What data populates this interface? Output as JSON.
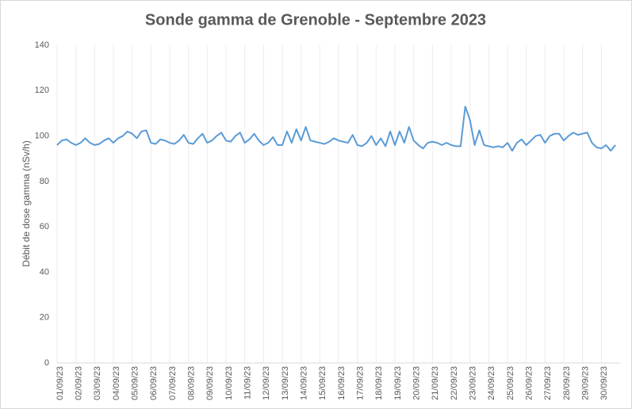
{
  "chart_data": {
    "type": "line",
    "title": "Sonde gamma de Grenoble - Septembre 2023",
    "y_label": "Débit de dose gamma (nSv/h)",
    "categories": [
      "01/09/23",
      null,
      null,
      null,
      "02/09/23",
      null,
      null,
      null,
      "03/09/23",
      null,
      null,
      null,
      "04/09/23",
      null,
      null,
      null,
      "05/09/23",
      null,
      null,
      null,
      "06/09/23",
      null,
      null,
      null,
      "07/09/23",
      null,
      null,
      null,
      "08/09/23",
      null,
      null,
      null,
      "09/09/23",
      null,
      null,
      null,
      "10/09/23",
      null,
      null,
      null,
      "11/09/23",
      null,
      null,
      null,
      "12/09/23",
      null,
      null,
      null,
      "13/09/23",
      null,
      null,
      null,
      "14/09/23",
      null,
      null,
      null,
      "15/09/23",
      null,
      null,
      null,
      "16/09/23",
      null,
      null,
      null,
      "17/09/23",
      null,
      null,
      null,
      "18/09/23",
      null,
      null,
      null,
      "19/09/23",
      null,
      null,
      null,
      "20/09/23",
      null,
      null,
      null,
      "21/09/23",
      null,
      null,
      null,
      "22/09/23",
      null,
      null,
      null,
      "23/09/23",
      null,
      null,
      null,
      "24/09/23",
      null,
      null,
      null,
      "25/09/23",
      null,
      null,
      null,
      "26/09/23",
      null,
      null,
      null,
      "27/09/23",
      null,
      null,
      null,
      "28/09/23",
      null,
      null,
      null,
      "29/09/23",
      null,
      null,
      null,
      "30/09/23",
      null,
      null,
      null
    ],
    "series": [
      {
        "name": "Débit de dose gamma",
        "color": "#5b9bd5",
        "values": [
          96,
          98,
          98.5,
          97,
          96,
          97,
          99,
          97,
          96,
          96.5,
          98,
          99,
          97,
          99,
          100,
          102,
          101,
          99,
          102,
          102.5,
          97,
          96.5,
          98.5,
          98,
          97,
          96.5,
          98,
          100.5,
          97,
          96.5,
          99,
          101,
          97,
          98,
          100,
          101.5,
          98,
          97.5,
          100,
          101.5,
          97,
          98.5,
          101,
          98,
          96,
          97,
          99.5,
          96,
          96,
          102,
          97,
          103,
          98,
          104,
          98,
          97.5,
          97,
          96.5,
          97.5,
          99,
          98,
          97.5,
          97,
          100.5,
          96,
          95.5,
          97,
          100,
          96,
          99,
          95.5,
          102,
          96,
          102,
          97,
          104,
          98,
          96,
          94.5,
          97,
          97.5,
          97,
          96,
          97,
          96,
          95.5,
          95.5,
          113,
          107,
          96,
          102.5,
          96,
          95.5,
          95,
          95.5,
          95,
          97,
          93.5,
          97,
          98.5,
          96,
          98,
          100,
          100.5,
          97,
          100,
          101,
          101,
          98,
          100,
          101.5,
          100.5,
          101,
          101.5,
          97,
          95,
          94.5,
          96,
          93.5,
          96
        ]
      }
    ],
    "ylim": [
      0,
      140
    ],
    "yticks": [
      0,
      20,
      40,
      60,
      80,
      100,
      120,
      140
    ],
    "grid": true
  }
}
